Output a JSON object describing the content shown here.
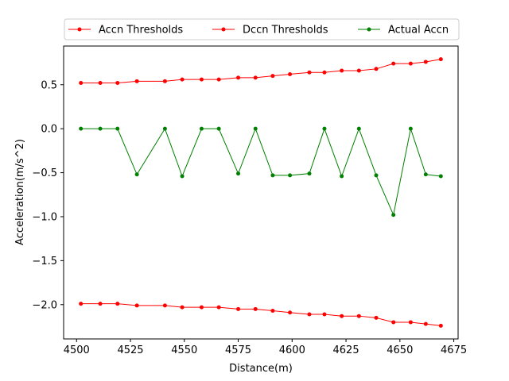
{
  "chart_data": {
    "type": "line",
    "xlabel": "Distance(m)",
    "ylabel": "Acceleration(m/s^2)",
    "xlim": [
      4494,
      4677
    ],
    "ylim": [
      -2.39,
      0.94
    ],
    "xticks": [
      4500,
      4525,
      4550,
      4575,
      4600,
      4625,
      4650,
      4675
    ],
    "xtick_labels": [
      "4500",
      "4525",
      "4550",
      "4575",
      "4600",
      "4625",
      "4650",
      "4675"
    ],
    "yticks": [
      -2.0,
      -1.5,
      -1.0,
      -0.5,
      0.0,
      0.5
    ],
    "ytick_labels": [
      "−2.0",
      "−1.5",
      "−1.0",
      "−0.5",
      "0.0",
      "0.5"
    ],
    "grid": false,
    "legend_position": "top-center",
    "x": [
      4502,
      4511,
      4519,
      4528,
      4541,
      4549,
      4558,
      4566,
      4575,
      4583,
      4591,
      4599,
      4608,
      4615,
      4623,
      4631,
      4639,
      4647,
      4655,
      4662,
      4669
    ],
    "series": [
      {
        "name": "Accn Thresholds",
        "color": "#ff0000",
        "values": [
          0.52,
          0.52,
          0.52,
          0.54,
          0.54,
          0.56,
          0.56,
          0.56,
          0.58,
          0.58,
          0.6,
          0.62,
          0.64,
          0.64,
          0.66,
          0.66,
          0.68,
          0.74,
          0.74,
          0.76,
          0.79
        ]
      },
      {
        "name": "Dccn Thresholds",
        "color": "#ff0000",
        "values": [
          -1.99,
          -1.99,
          -1.99,
          -2.01,
          -2.01,
          -2.03,
          -2.03,
          -2.03,
          -2.05,
          -2.05,
          -2.07,
          -2.09,
          -2.11,
          -2.11,
          -2.13,
          -2.13,
          -2.15,
          -2.2,
          -2.2,
          -2.22,
          -2.24
        ]
      },
      {
        "name": "Actual Accn",
        "color": "#008000",
        "values": [
          0.0,
          0.0,
          0.0,
          -0.52,
          0.0,
          -0.54,
          0.0,
          0.0,
          -0.51,
          0.0,
          -0.53,
          -0.53,
          -0.51,
          0.0,
          -0.54,
          0.0,
          -0.53,
          -0.98,
          0.0,
          -0.52,
          -0.54
        ]
      }
    ]
  }
}
